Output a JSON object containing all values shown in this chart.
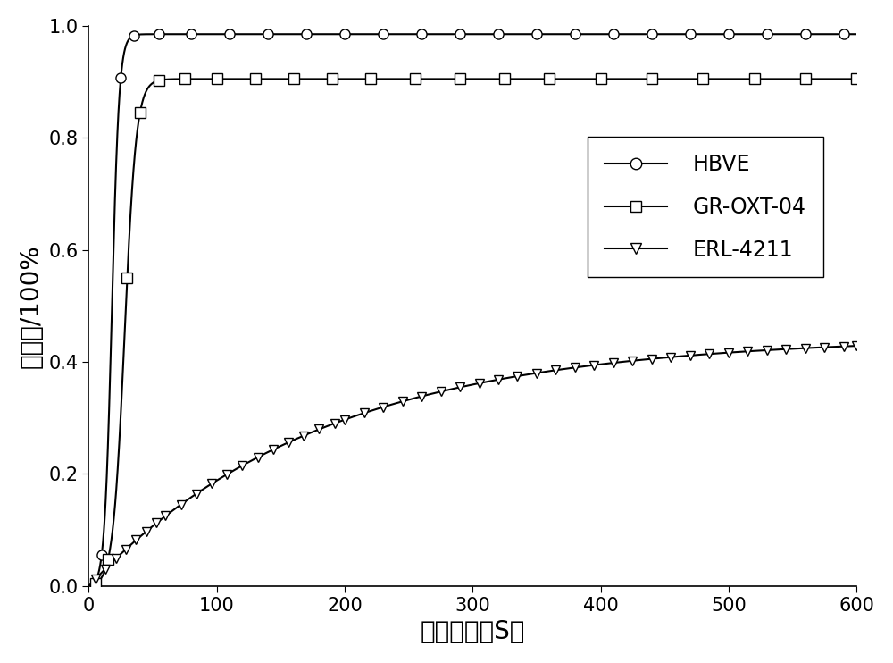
{
  "title": "",
  "xlabel": "曝光时间（S）",
  "ylabel": "固化率/100%",
  "xlim": [
    0,
    600
  ],
  "ylim": [
    0.0,
    1.0
  ],
  "xticks": [
    0,
    100,
    200,
    300,
    400,
    500,
    600
  ],
  "yticks": [
    0.0,
    0.2,
    0.4,
    0.6,
    0.8,
    1.0
  ],
  "legend_labels": [
    "HBVE",
    "GR-OXT-04",
    "ERL-4211"
  ],
  "line_color": "#000000",
  "background_color": "#ffffff",
  "font_size_label": 20,
  "font_size_tick": 15,
  "font_size_legend": 17,
  "marker_size": 8,
  "line_width": 1.5
}
